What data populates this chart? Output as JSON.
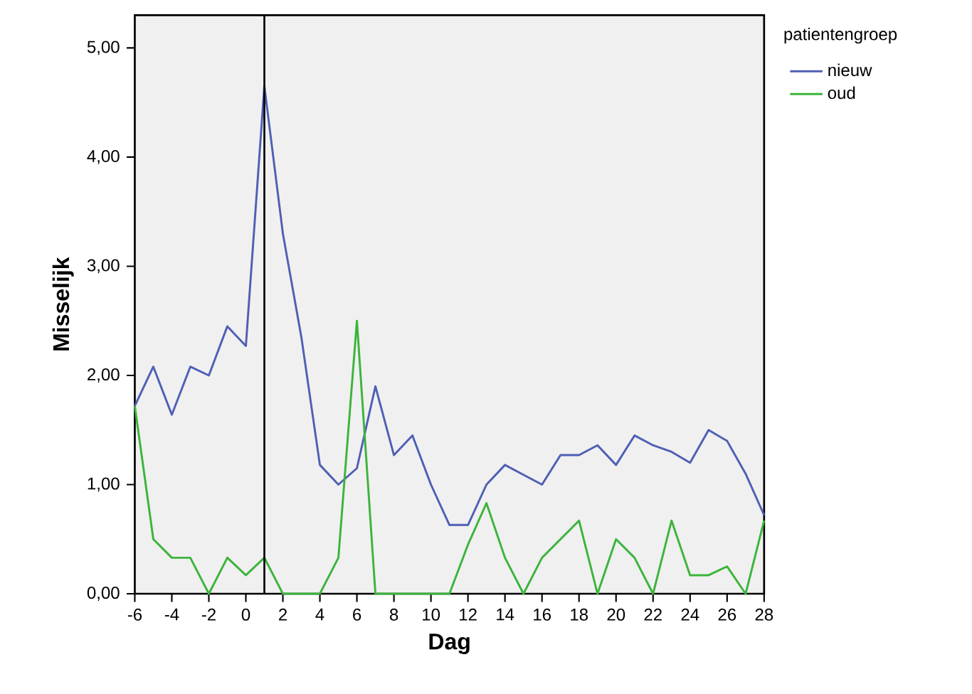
{
  "chart_data": {
    "type": "line",
    "xlabel": "Dag",
    "ylabel": "Misselijk",
    "legend_title": "patientengroep",
    "legend": "right",
    "grid": false,
    "x": [
      -6,
      -5,
      -4,
      -3,
      -2,
      -1,
      0,
      1,
      2,
      3,
      4,
      5,
      6,
      7,
      8,
      9,
      10,
      11,
      12,
      13,
      14,
      15,
      16,
      17,
      18,
      19,
      20,
      21,
      22,
      23,
      24,
      25,
      26,
      27,
      28
    ],
    "series": [
      {
        "name": "nieuw",
        "color": "#4f5fb4",
        "values": [
          1.72,
          2.08,
          1.64,
          2.08,
          2.0,
          2.45,
          2.27,
          4.65,
          3.3,
          2.35,
          1.18,
          1.0,
          1.15,
          1.9,
          1.27,
          1.45,
          1.0,
          0.63,
          0.63,
          1.0,
          1.18,
          1.09,
          1.0,
          1.27,
          1.27,
          1.36,
          1.18,
          1.45,
          1.36,
          1.3,
          1.2,
          1.5,
          1.4,
          1.1,
          0.72
        ]
      },
      {
        "name": "oud",
        "color": "#3cb43c",
        "values": [
          1.72,
          0.5,
          0.33,
          0.33,
          0,
          0.33,
          0.17,
          0.33,
          0,
          0,
          0,
          0.33,
          2.5,
          0,
          0,
          0,
          0,
          0,
          0.45,
          0.83,
          0.33,
          0,
          0.33,
          0.5,
          0.67,
          0,
          0.5,
          0.33,
          0,
          0.67,
          0.17,
          0.17,
          0.25,
          0,
          0.67
        ]
      }
    ],
    "xlim": [
      -6,
      28
    ],
    "xticks": [
      -6,
      -4,
      -2,
      0,
      2,
      4,
      6,
      8,
      10,
      12,
      14,
      16,
      18,
      20,
      22,
      24,
      26,
      28
    ],
    "ylim": [
      0,
      5.3
    ],
    "yticks": [
      {
        "value": 0,
        "label": "0,00"
      },
      {
        "value": 1,
        "label": "1,00"
      },
      {
        "value": 2,
        "label": "2,00"
      },
      {
        "value": 3,
        "label": "3,00"
      },
      {
        "value": 4,
        "label": "4,00"
      },
      {
        "value": 5,
        "label": "5,00"
      }
    ],
    "ref_lines": [
      {
        "axis": "x",
        "value": 1,
        "color": "#000000"
      }
    ],
    "line_style": "solid",
    "marker": "none"
  }
}
